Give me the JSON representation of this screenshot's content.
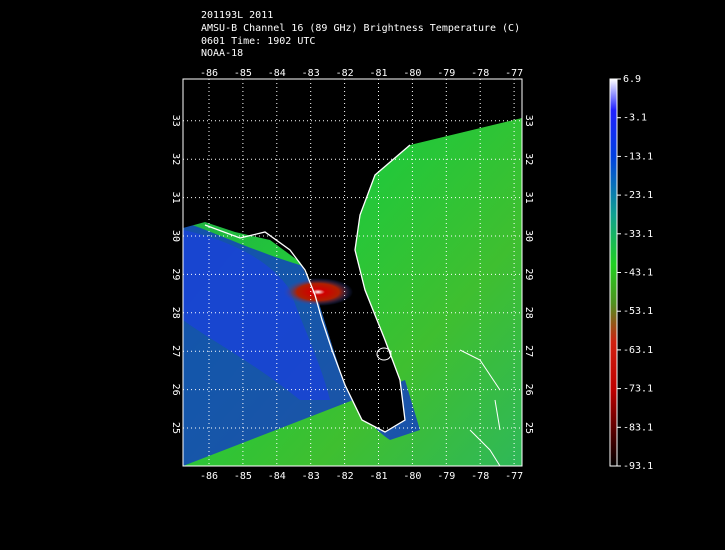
{
  "title_lines": [
    "201193L 2011",
    "AMSU-B Channel 16 (89 GHz) Brightness Temperature (C)",
    "0601 Time: 1902 UTC",
    "NOAA-18"
  ],
  "map": {
    "lon_ticks": [
      -86,
      -85,
      -84,
      -83,
      -82,
      -81,
      -80,
      -79,
      -78,
      -77
    ],
    "lat_ticks": [
      25,
      26,
      27,
      28,
      29,
      30,
      31,
      32,
      33
    ]
  },
  "colorbar": {
    "ticks": [
      6.9,
      -3.1,
      -13.1,
      -23.1,
      -33.1,
      -43.1,
      -53.1,
      -63.1,
      -73.1,
      -83.1,
      -93.1
    ]
  }
}
